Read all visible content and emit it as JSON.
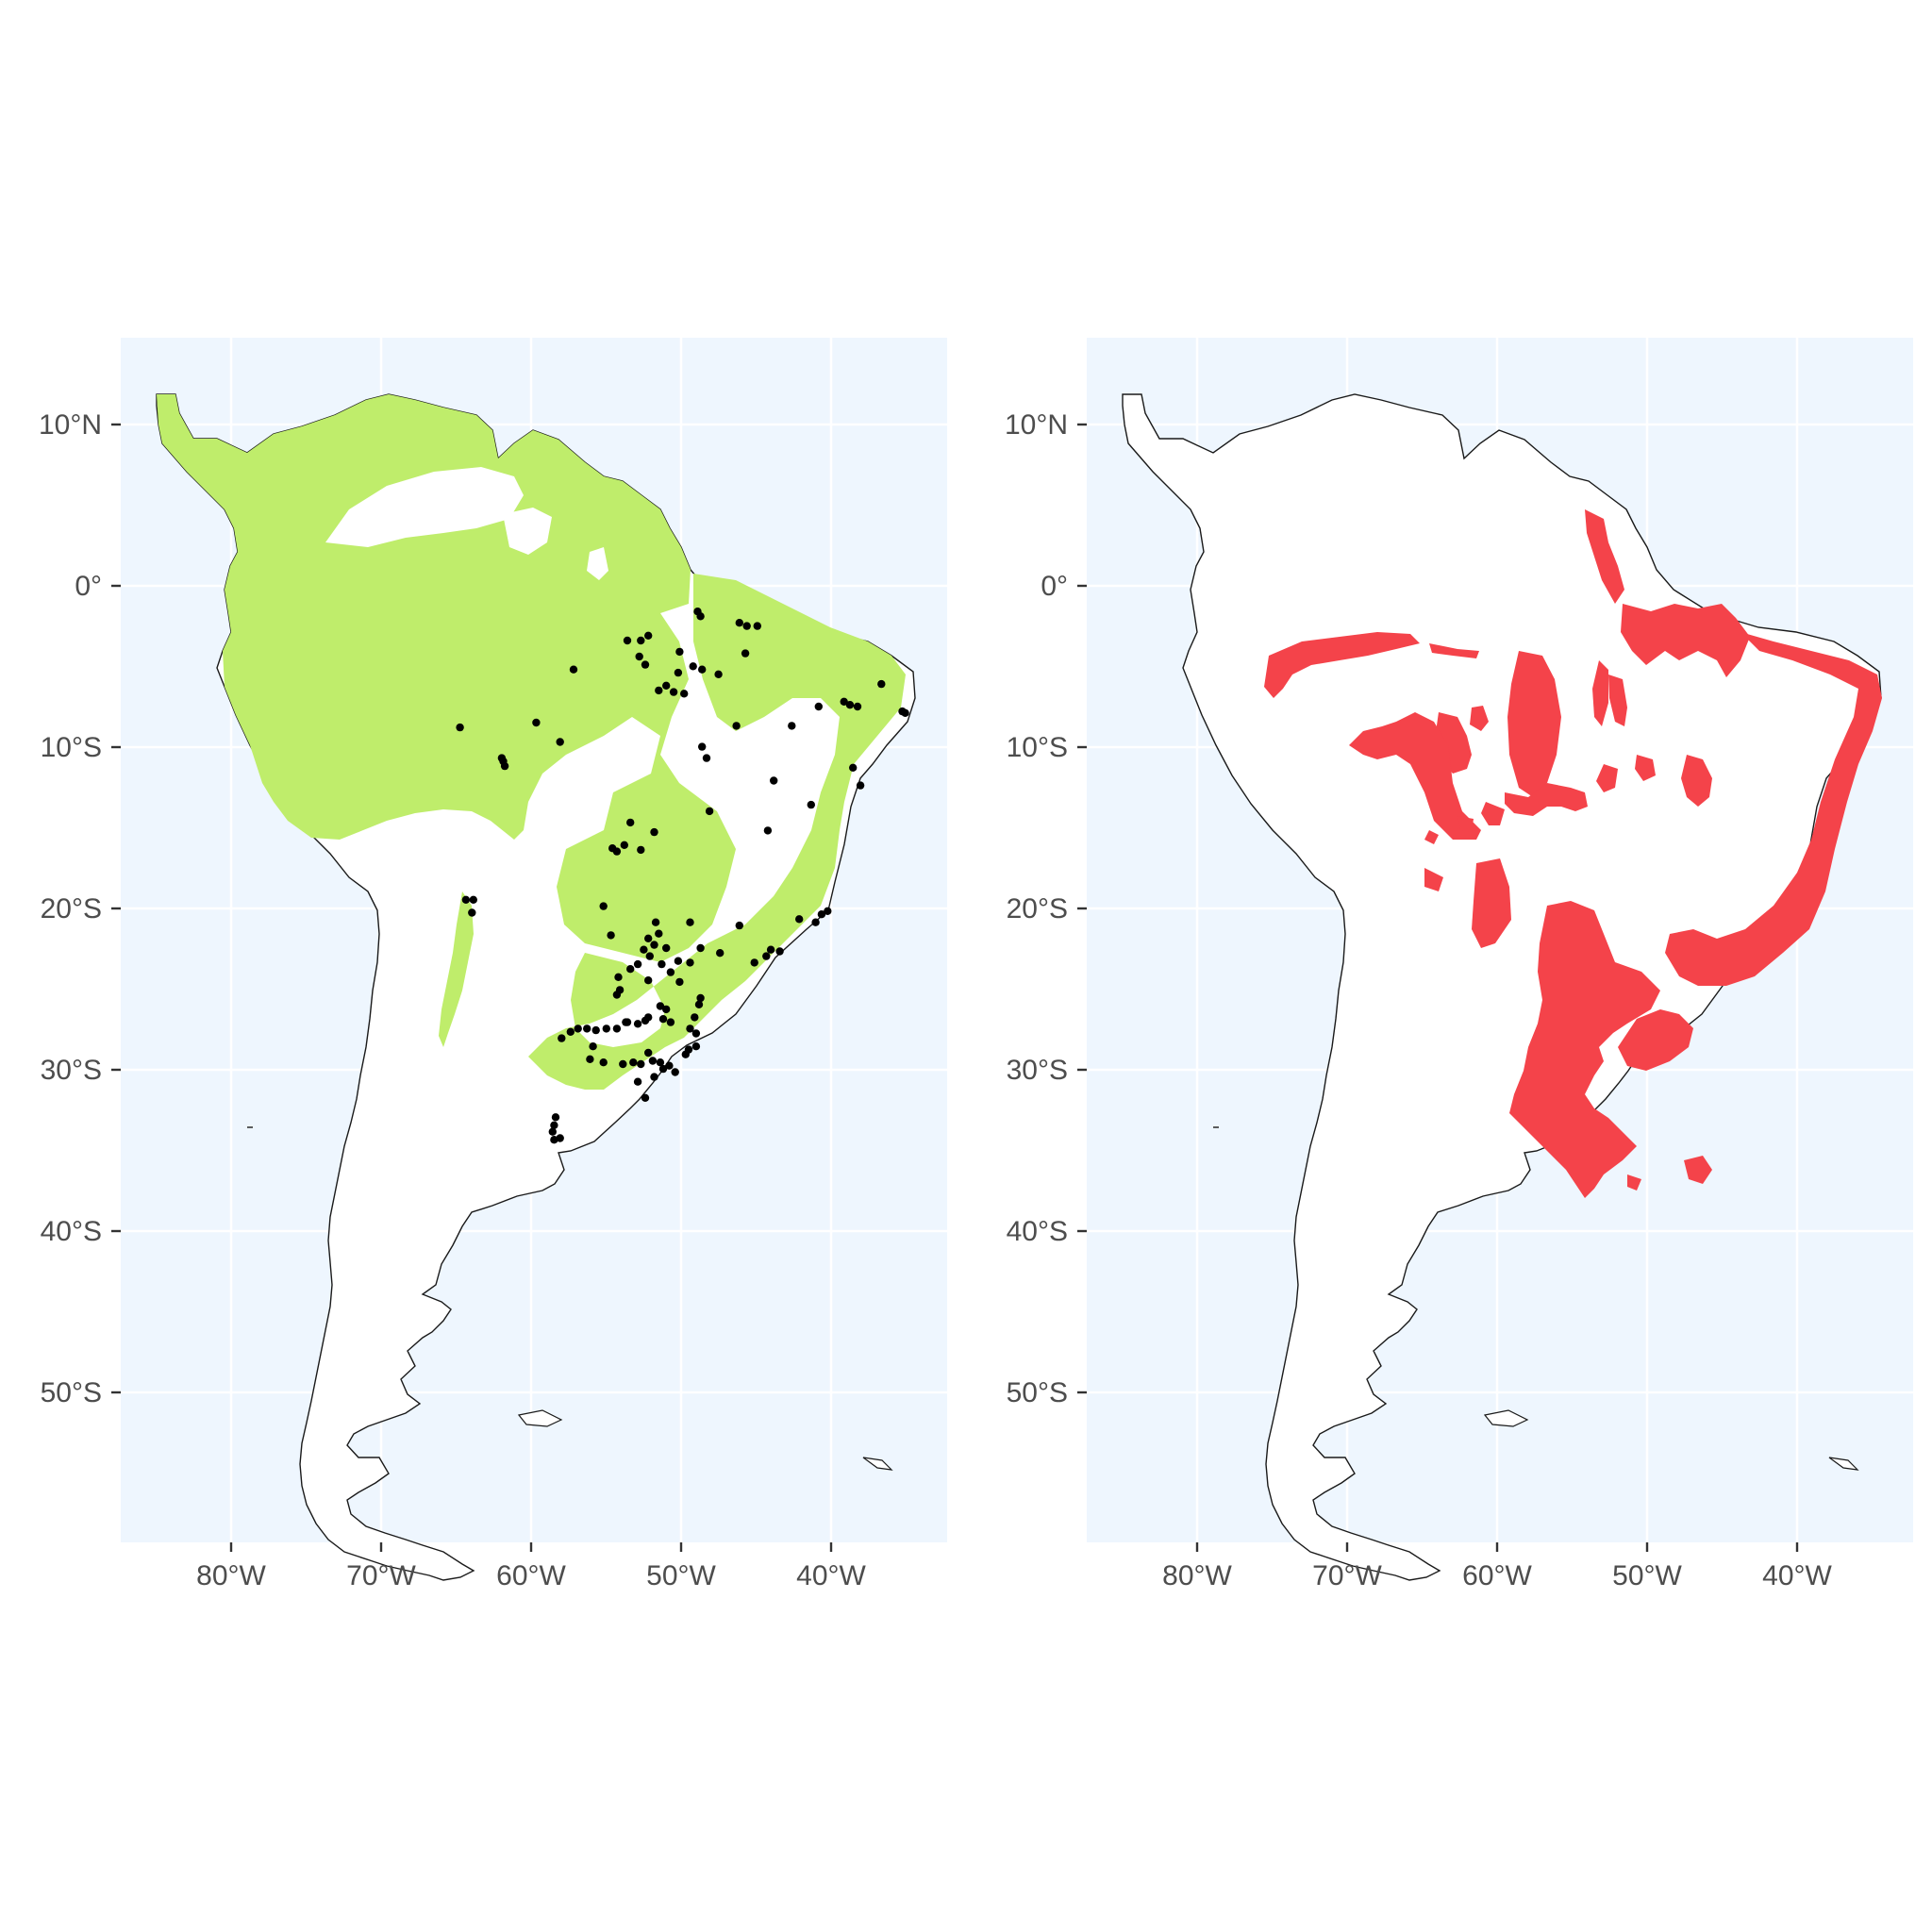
{
  "chart_data": {
    "type": "map",
    "region": "South America",
    "x_axis": {
      "ticks": [
        -80,
        -70,
        -60,
        -50,
        -40
      ],
      "tick_labels": [
        "80°W",
        "70°W",
        "60°W",
        "50°W",
        "40°W"
      ],
      "range": [
        -87.4,
        -32.1
      ]
    },
    "y_axis": {
      "ticks": [
        10,
        0,
        -10,
        -20,
        -30,
        -40,
        -50
      ],
      "tick_labels": [
        "10°N",
        "0°",
        "10°S",
        "20°S",
        "30°S",
        "40°S",
        "50°S"
      ],
      "range": [
        -59.5,
        15.3
      ]
    },
    "grid": true,
    "panels": [
      {
        "id": "left",
        "layers": [
          "continent-outline",
          "green-range-fill",
          "occurrence-points"
        ],
        "fill_color": "#bfed6b",
        "point_color": "#000000",
        "points": [
          [
            -48.8,
            -1.7
          ],
          [
            -48.6,
            -2.0
          ],
          [
            -46.0,
            -2.4
          ],
          [
            -45.5,
            -2.6
          ],
          [
            -44.8,
            -2.6
          ],
          [
            -53.5,
            -3.5
          ],
          [
            -52.6,
            -3.5
          ],
          [
            -52.1,
            -3.2
          ],
          [
            -52.7,
            -4.5
          ],
          [
            -52.3,
            -5.0
          ],
          [
            -50.0,
            -4.2
          ],
          [
            -50.1,
            -5.5
          ],
          [
            -49.1,
            -5.1
          ],
          [
            -48.5,
            -5.3
          ],
          [
            -47.4,
            -5.6
          ],
          [
            -45.6,
            -4.3
          ],
          [
            -50.9,
            -6.3
          ],
          [
            -51.4,
            -6.6
          ],
          [
            -50.4,
            -6.7
          ],
          [
            -49.7,
            -6.8
          ],
          [
            -57.1,
            -5.3
          ],
          [
            -48.5,
            -10.1
          ],
          [
            -48.2,
            -10.8
          ],
          [
            -58.0,
            -9.8
          ],
          [
            -59.6,
            -8.6
          ],
          [
            -64.7,
            -8.9
          ],
          [
            -61.9,
            -10.8
          ],
          [
            -61.7,
            -11.3
          ],
          [
            -61.8,
            -11.0
          ],
          [
            -36.5,
            -6.2
          ],
          [
            -39.0,
            -7.3
          ],
          [
            -38.6,
            -7.5
          ],
          [
            -38.1,
            -7.6
          ],
          [
            -35.1,
            -7.9
          ],
          [
            -34.9,
            -8.0
          ],
          [
            -40.7,
            -7.6
          ],
          [
            -42.5,
            -8.8
          ],
          [
            -46.2,
            -8.8
          ],
          [
            -38.4,
            -11.4
          ],
          [
            -37.9,
            -12.5
          ],
          [
            -43.7,
            -12.2
          ],
          [
            -41.2,
            -13.7
          ],
          [
            -48.0,
            -14.1
          ],
          [
            -53.3,
            -14.8
          ],
          [
            -51.7,
            -15.4
          ],
          [
            -44.1,
            -15.3
          ],
          [
            -52.6,
            -16.5
          ],
          [
            -54.5,
            -16.4
          ],
          [
            -54.2,
            -16.6
          ],
          [
            -53.7,
            -16.2
          ],
          [
            -64.3,
            -19.6
          ],
          [
            -63.8,
            -19.6
          ],
          [
            -63.9,
            -20.4
          ],
          [
            -55.1,
            -20.0
          ],
          [
            -54.6,
            -21.8
          ],
          [
            -46.0,
            -21.2
          ],
          [
            -51.6,
            -21.0
          ],
          [
            -51.4,
            -21.7
          ],
          [
            -52.1,
            -22.0
          ],
          [
            -51.7,
            -22.4
          ],
          [
            -49.3,
            -21.0
          ],
          [
            -48.6,
            -22.6
          ],
          [
            -47.3,
            -22.9
          ],
          [
            -45.0,
            -23.5
          ],
          [
            -44.2,
            -23.1
          ],
          [
            -43.9,
            -22.7
          ],
          [
            -43.3,
            -22.8
          ],
          [
            -42.0,
            -20.8
          ],
          [
            -40.5,
            -20.5
          ],
          [
            -40.1,
            -20.3
          ],
          [
            -40.9,
            -21.0
          ],
          [
            -52.4,
            -22.7
          ],
          [
            -52.0,
            -23.1
          ],
          [
            -50.9,
            -22.6
          ],
          [
            -50.1,
            -23.4
          ],
          [
            -49.3,
            -23.5
          ],
          [
            -52.8,
            -23.6
          ],
          [
            -53.3,
            -23.9
          ],
          [
            -51.2,
            -23.6
          ],
          [
            -50.6,
            -24.1
          ],
          [
            -52.1,
            -24.6
          ],
          [
            -54.1,
            -24.4
          ],
          [
            -54.2,
            -25.5
          ],
          [
            -54.0,
            -25.2
          ],
          [
            -50.0,
            -24.7
          ],
          [
            -48.6,
            -25.7
          ],
          [
            -48.7,
            -26.1
          ],
          [
            -50.9,
            -26.4
          ],
          [
            -51.1,
            -27.0
          ],
          [
            -52.1,
            -26.9
          ],
          [
            -52.8,
            -27.3
          ],
          [
            -53.6,
            -27.2
          ],
          [
            -54.2,
            -27.6
          ],
          [
            -54.9,
            -27.6
          ],
          [
            -55.6,
            -27.7
          ],
          [
            -56.2,
            -27.6
          ],
          [
            -56.8,
            -27.6
          ],
          [
            -57.3,
            -27.8
          ],
          [
            -57.9,
            -28.2
          ],
          [
            -49.3,
            -27.6
          ],
          [
            -48.9,
            -27.9
          ],
          [
            -48.9,
            -28.7
          ],
          [
            -49.4,
            -28.9
          ],
          [
            -49.6,
            -29.2
          ],
          [
            -53.1,
            -29.7
          ],
          [
            -52.6,
            -29.8
          ],
          [
            -51.8,
            -29.6
          ],
          [
            -51.3,
            -29.7
          ],
          [
            -50.7,
            -29.9
          ],
          [
            -52.1,
            -29.1
          ],
          [
            -51.1,
            -30.1
          ],
          [
            -50.3,
            -30.3
          ],
          [
            -51.7,
            -30.6
          ],
          [
            -52.8,
            -30.9
          ],
          [
            -52.3,
            -31.9
          ],
          [
            -58.3,
            -33.1
          ],
          [
            -58.4,
            -33.6
          ],
          [
            -58.5,
            -34.0
          ],
          [
            -58.4,
            -34.5
          ],
          [
            -58.0,
            -34.4
          ],
          [
            -53.8,
            -29.8
          ],
          [
            -55.1,
            -29.7
          ],
          [
            -56.0,
            -29.5
          ],
          [
            -55.8,
            -28.7
          ],
          [
            -53.5,
            -27.2
          ],
          [
            -52.3,
            -27.1
          ],
          [
            -51.3,
            -26.2
          ],
          [
            -50.6,
            -27.2
          ],
          [
            -49.0,
            -26.9
          ]
        ]
      },
      {
        "id": "right",
        "layers": [
          "continent-outline",
          "red-range-fill"
        ],
        "fill_color": "#f4434a"
      }
    ]
  }
}
